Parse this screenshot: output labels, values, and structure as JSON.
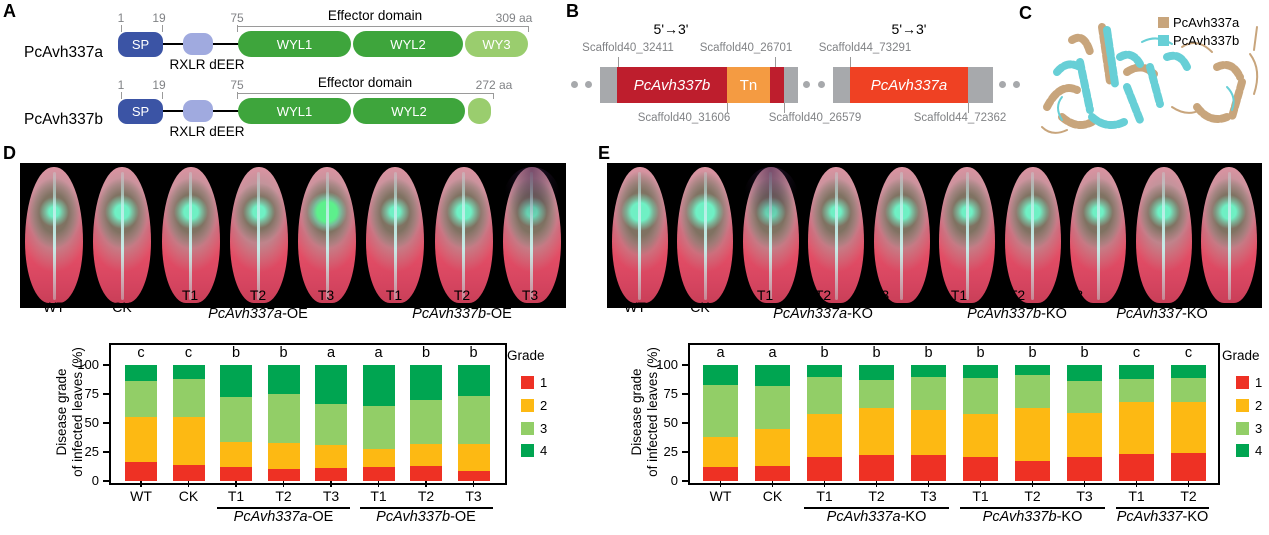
{
  "panels": {
    "A": {
      "label": "A",
      "proteins": [
        {
          "name": "PcAvh337a",
          "positions": [
            "1",
            "19",
            "75"
          ],
          "length_label": "309 aa",
          "sp_label": "SP",
          "rxlr_label": "RXLR dEER",
          "effector_label": "Effector domain",
          "domains": [
            "WYL1",
            "WYL2",
            "WY3"
          ]
        },
        {
          "name": "PcAvh337b",
          "positions": [
            "1",
            "19",
            "75"
          ],
          "length_label": "272 aa",
          "sp_label": "SP",
          "rxlr_label": "RXLR dEER",
          "effector_label": "Effector domain",
          "domains": [
            "WYL1",
            "WYL2"
          ]
        }
      ],
      "colors": {
        "sp": "#3B54A5",
        "rxlr": "#A0AADF",
        "wyl": "#3EA53C",
        "wy_light": "#9ACD6E"
      }
    },
    "B": {
      "label": "B",
      "direction_labels": [
        "5'→3'",
        "5'→3'"
      ],
      "top_labels": [
        "Scaffold40_32411",
        "Scaffold40_26701",
        "Scaffold44_73291"
      ],
      "bottom_labels": [
        "Scaffold40_31606",
        "Scaffold40_26579",
        "Scaffold44_72362"
      ],
      "segments": [
        {
          "label": "PcAvh337b",
          "color": "#BE1E2D"
        },
        {
          "label": "Tn",
          "color": "#F49B42"
        },
        {
          "label": "PcAvh337a",
          "color": "#EF4123"
        }
      ],
      "backbone_color": "#A7A9AC"
    },
    "C": {
      "label": "C",
      "legend": [
        {
          "label": "PcAvh337a",
          "color": "#C8A57C"
        },
        {
          "label": "PcAvh337b",
          "color": "#67CFD6"
        }
      ]
    },
    "D": {
      "label": "D",
      "leaf_labels": {
        "singles": [
          "WT",
          "CK"
        ],
        "groups": [
          {
            "ticks": [
              "T1",
              "T2",
              "T3"
            ],
            "gene": "PcAvh337a",
            "suffix": "-OE"
          },
          {
            "ticks": [
              "T1",
              "T2",
              "T3"
            ],
            "gene": "PcAvh337b",
            "suffix": "-OE"
          }
        ]
      }
    },
    "E": {
      "label": "E",
      "leaf_labels": {
        "singles": [
          "WT",
          "CK"
        ],
        "groups": [
          {
            "ticks": [
              "T1",
              "T2",
              "T3"
            ],
            "gene": "PcAvh337a",
            "suffix": "-KO"
          },
          {
            "ticks": [
              "T1",
              "T2",
              "T3"
            ],
            "gene": "PcAvh337b",
            "suffix": "-KO"
          },
          {
            "ticks": [
              "T1",
              "T2"
            ],
            "gene": "PcAvh337",
            "suffix": "-KO"
          }
        ]
      }
    }
  },
  "chart_data": [
    {
      "id": "D",
      "type": "bar",
      "stacked": true,
      "ylabel_lines": [
        "Disease grade",
        "of infected leaves (%)"
      ],
      "ylim": [
        0,
        100
      ],
      "yticks": [
        0,
        25,
        50,
        75,
        100
      ],
      "categories": [
        "WT",
        "CK",
        "T1",
        "T2",
        "T3",
        "T1",
        "T2",
        "T3"
      ],
      "x_groups": [
        {
          "from": 2,
          "to": 4,
          "gene": "PcAvh337a",
          "suffix": "-OE"
        },
        {
          "from": 5,
          "to": 7,
          "gene": "PcAvh337b",
          "suffix": "-OE"
        }
      ],
      "sig_letters": [
        "c",
        "c",
        "b",
        "b",
        "a",
        "a",
        "b",
        "b"
      ],
      "legend_title": "Grade",
      "legend_position": "right",
      "series": [
        {
          "name": "1",
          "color": "#EE3124",
          "values": [
            16,
            14,
            12,
            10,
            11,
            12,
            13,
            9
          ]
        },
        {
          "name": "2",
          "color": "#FDB913",
          "values": [
            39,
            41,
            22,
            23,
            20,
            16,
            19,
            23
          ]
        },
        {
          "name": "3",
          "color": "#92CE67",
          "values": [
            31,
            33,
            38,
            42,
            35,
            37,
            38,
            41
          ]
        },
        {
          "name": "4",
          "color": "#00A551",
          "values": [
            14,
            12,
            28,
            25,
            34,
            35,
            30,
            27
          ]
        }
      ]
    },
    {
      "id": "E",
      "type": "bar",
      "stacked": true,
      "ylabel_lines": [
        "Disease grade",
        "of infected leaves (%)"
      ],
      "ylim": [
        0,
        100
      ],
      "yticks": [
        0,
        25,
        50,
        75,
        100
      ],
      "categories": [
        "WT",
        "CK",
        "T1",
        "T2",
        "T3",
        "T1",
        "T2",
        "T3",
        "T1",
        "T2"
      ],
      "x_groups": [
        {
          "from": 2,
          "to": 4,
          "gene": "PcAvh337a",
          "suffix": "-KO"
        },
        {
          "from": 5,
          "to": 7,
          "gene": "PcAvh337b",
          "suffix": "-KO"
        },
        {
          "from": 8,
          "to": 9,
          "gene": "PcAvh337",
          "suffix": "-KO"
        }
      ],
      "sig_letters": [
        "a",
        "a",
        "b",
        "b",
        "b",
        "b",
        "b",
        "b",
        "c",
        "c"
      ],
      "legend_title": "Grade",
      "legend_position": "right",
      "series": [
        {
          "name": "1",
          "color": "#EE3124",
          "values": [
            12,
            13,
            21,
            22,
            22,
            21,
            17,
            21,
            23,
            24
          ]
        },
        {
          "name": "2",
          "color": "#FDB913",
          "values": [
            26,
            32,
            37,
            41,
            39,
            37,
            46,
            38,
            45,
            44
          ]
        },
        {
          "name": "3",
          "color": "#92CE67",
          "values": [
            45,
            37,
            32,
            24,
            29,
            31,
            28,
            27,
            20,
            21
          ]
        },
        {
          "name": "4",
          "color": "#00A551",
          "values": [
            17,
            18,
            10,
            13,
            10,
            11,
            9,
            14,
            12,
            11
          ]
        }
      ]
    }
  ]
}
